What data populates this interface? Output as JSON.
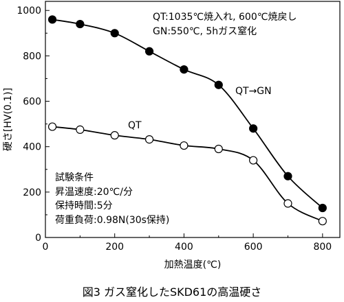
{
  "chart_data": {
    "type": "line",
    "caption": "図3 ガス窒化したSKD61の高温硬さ",
    "xlabel": "加熱温度(℃)",
    "ylabel": "硬さ[HV(0.1)]",
    "xlim": [
      0,
      850
    ],
    "ylim": [
      0,
      1040
    ],
    "x_ticks": [
      0,
      200,
      400,
      600,
      800
    ],
    "y_ticks": [
      0,
      200,
      400,
      600,
      800,
      1000
    ],
    "series": [
      {
        "name": "QT→GN",
        "marker": "filled-circle",
        "x": [
          20,
          100,
          200,
          300,
          400,
          500,
          600,
          700,
          800
        ],
        "y": [
          960,
          940,
          900,
          820,
          740,
          672,
          480,
          270,
          130
        ]
      },
      {
        "name": "QT",
        "marker": "open-circle",
        "x": [
          20,
          100,
          200,
          300,
          400,
          500,
          600,
          700,
          800
        ],
        "y": [
          488,
          475,
          450,
          432,
          405,
          390,
          340,
          150,
          72
        ]
      }
    ],
    "legend_note": {
      "line1": "QT:1035℃焼入れ, 600℃焼戻し",
      "line2": "GN:550℃, 5hガス窒化"
    },
    "test_conditions": {
      "title": "試験条件",
      "line1": "昇温速度:20℃/分",
      "line2": "保持時間:5分",
      "line3": "荷重負荷:0.98N(30s保持)"
    }
  },
  "colors": {
    "line": "#000000",
    "background": "#ffffff"
  }
}
